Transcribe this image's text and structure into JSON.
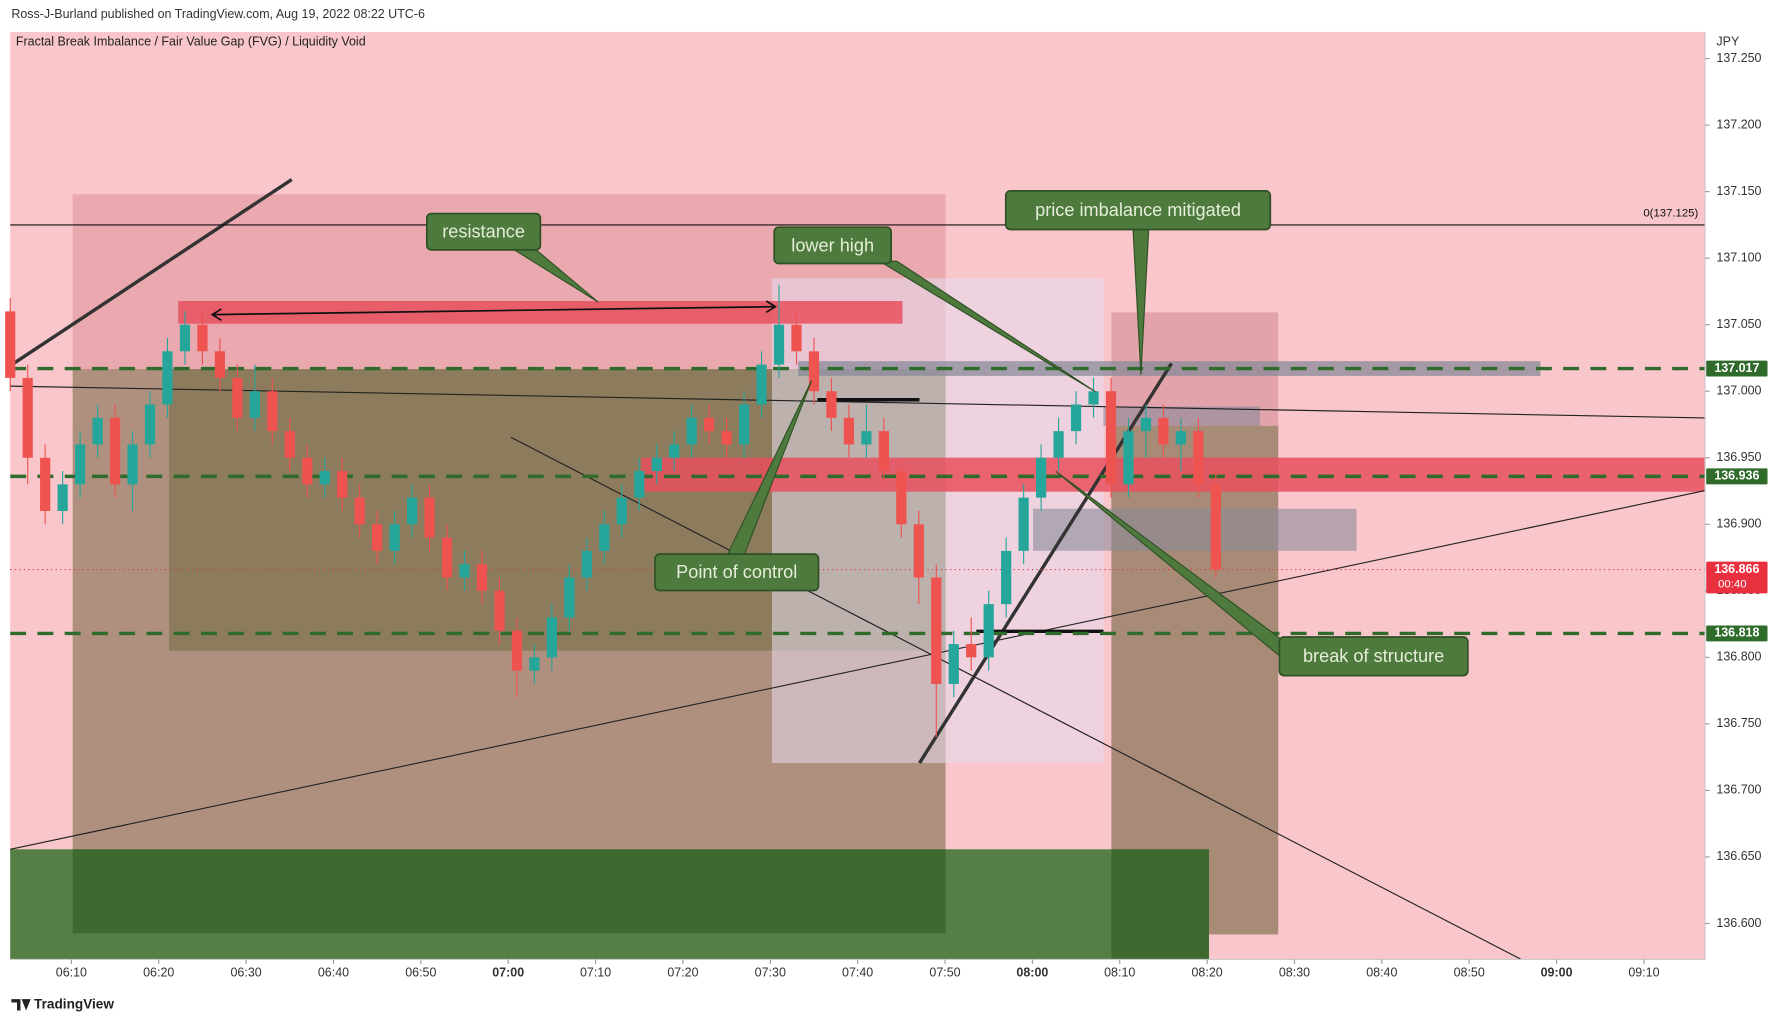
{
  "chart_data": {
    "type": "candlestick",
    "source": "Ross-J-Burland published on TradingView.com, Aug 19, 2022 08:22 UTC-6",
    "title": "Fractal Break Imbalance / Fair Value Gap (FVG) / Liquidity Void",
    "currency": "JPY",
    "brand": "TradingView",
    "up_color": "#26a69a",
    "down_color": "#ef5350",
    "x": [
      "06:03",
      "06:05",
      "06:07",
      "06:09",
      "06:11",
      "06:13",
      "06:15",
      "06:17",
      "06:19",
      "06:21",
      "06:23",
      "06:25",
      "06:27",
      "06:29",
      "06:31",
      "06:33",
      "06:35",
      "06:37",
      "06:39",
      "06:41",
      "06:43",
      "06:45",
      "06:47",
      "06:49",
      "06:51",
      "06:53",
      "06:55",
      "06:57",
      "06:59",
      "07:01",
      "07:03",
      "07:05",
      "07:07",
      "07:09",
      "07:11",
      "07:13",
      "07:15",
      "07:17",
      "07:19",
      "07:21",
      "07:23",
      "07:25",
      "07:27",
      "07:29",
      "07:31",
      "07:33",
      "07:35",
      "07:37",
      "07:39",
      "07:41",
      "07:43",
      "07:45",
      "07:47",
      "07:49",
      "07:51",
      "07:53",
      "07:55",
      "07:57",
      "07:59",
      "08:01",
      "08:03",
      "08:05",
      "08:07",
      "08:09",
      "08:11",
      "08:13",
      "08:15",
      "08:17",
      "08:19",
      "08:21"
    ],
    "open": [
      137.06,
      137.01,
      136.95,
      136.91,
      136.93,
      136.96,
      136.98,
      136.93,
      136.96,
      136.99,
      137.03,
      137.05,
      137.03,
      137.01,
      136.98,
      137.0,
      136.97,
      136.95,
      136.93,
      136.94,
      136.92,
      136.9,
      136.88,
      136.9,
      136.92,
      136.89,
      136.86,
      136.87,
      136.85,
      136.82,
      136.79,
      136.8,
      136.83,
      136.86,
      136.88,
      136.9,
      136.92,
      136.94,
      136.95,
      136.96,
      136.98,
      136.97,
      136.96,
      136.99,
      137.02,
      137.05,
      137.03,
      137.0,
      136.98,
      136.96,
      136.97,
      136.94,
      136.9,
      136.86,
      136.78,
      136.81,
      136.8,
      136.84,
      136.88,
      136.92,
      136.95,
      136.97,
      136.99,
      137.0,
      136.93,
      136.97,
      136.98,
      136.96,
      136.97,
      136.93
    ],
    "high": [
      137.07,
      137.02,
      136.96,
      136.94,
      136.97,
      136.99,
      136.99,
      136.97,
      137.0,
      137.04,
      137.06,
      137.06,
      137.04,
      137.02,
      137.02,
      137.01,
      136.98,
      136.96,
      136.95,
      136.95,
      136.93,
      136.91,
      136.91,
      136.93,
      136.93,
      136.9,
      136.88,
      136.88,
      136.86,
      136.83,
      136.81,
      136.84,
      136.87,
      136.89,
      136.91,
      136.93,
      136.95,
      136.96,
      136.97,
      136.99,
      136.99,
      136.98,
      137.0,
      137.03,
      137.08,
      137.06,
      137.04,
      137.01,
      136.99,
      136.99,
      136.98,
      136.95,
      136.91,
      136.87,
      136.82,
      136.83,
      136.85,
      136.89,
      136.93,
      136.96,
      136.98,
      137.0,
      137.01,
      137.01,
      136.98,
      136.99,
      136.99,
      136.98,
      136.98,
      136.94
    ],
    "low": [
      137.0,
      136.93,
      136.9,
      136.9,
      136.92,
      136.95,
      136.92,
      136.91,
      136.95,
      136.98,
      137.02,
      137.02,
      137.0,
      136.97,
      136.97,
      136.96,
      136.94,
      136.92,
      136.92,
      136.91,
      136.89,
      136.87,
      136.87,
      136.89,
      136.88,
      136.85,
      136.85,
      136.84,
      136.81,
      136.77,
      136.78,
      136.79,
      136.82,
      136.85,
      136.87,
      136.89,
      136.91,
      136.93,
      136.94,
      136.95,
      136.96,
      136.95,
      136.95,
      136.98,
      137.01,
      137.02,
      136.99,
      136.97,
      136.95,
      136.95,
      136.93,
      136.89,
      136.84,
      136.74,
      136.77,
      136.79,
      136.79,
      136.83,
      136.87,
      136.91,
      136.94,
      136.96,
      136.98,
      136.92,
      136.92,
      136.95,
      136.95,
      136.94,
      136.92,
      136.86
    ],
    "close": [
      137.01,
      136.95,
      136.91,
      136.93,
      136.96,
      136.98,
      136.93,
      136.96,
      136.99,
      137.03,
      137.05,
      137.03,
      137.01,
      136.98,
      137.0,
      136.97,
      136.95,
      136.93,
      136.94,
      136.92,
      136.9,
      136.88,
      136.9,
      136.92,
      136.89,
      136.86,
      136.87,
      136.85,
      136.82,
      136.79,
      136.8,
      136.83,
      136.86,
      136.88,
      136.9,
      136.92,
      136.94,
      136.95,
      136.96,
      136.98,
      136.97,
      136.96,
      136.99,
      137.02,
      137.05,
      137.03,
      137.0,
      136.98,
      136.96,
      136.97,
      136.94,
      136.9,
      136.86,
      136.78,
      136.81,
      136.8,
      136.84,
      136.88,
      136.92,
      136.95,
      136.97,
      136.99,
      137.0,
      136.93,
      136.97,
      136.98,
      136.96,
      136.97,
      136.93,
      136.866
    ],
    "xlim": [
      "06:03",
      "09:17"
    ],
    "xticks": [
      "06:10",
      "06:20",
      "06:30",
      "06:40",
      "06:50",
      "07:00",
      "07:10",
      "07:20",
      "07:30",
      "07:40",
      "07:50",
      "08:00",
      "08:10",
      "08:20",
      "08:30",
      "08:40",
      "08:50",
      "09:00",
      "09:10"
    ],
    "ylim": [
      136.573,
      137.27
    ],
    "yticks": [
      {
        "value": 136.6,
        "label": "136.600"
      },
      {
        "value": 136.65,
        "label": "136.650"
      },
      {
        "value": 136.7,
        "label": "136.700"
      },
      {
        "value": 136.75,
        "label": "136.750"
      },
      {
        "value": 136.8,
        "label": "136.800"
      },
      {
        "value": 136.85,
        "label": "136.850"
      },
      {
        "value": 136.9,
        "label": "136.900"
      },
      {
        "value": 136.95,
        "label": "136.950"
      },
      {
        "value": 137.0,
        "label": "137.000"
      },
      {
        "value": 137.05,
        "label": "137.050"
      },
      {
        "value": 137.1,
        "label": "137.100"
      },
      {
        "value": 137.15,
        "label": "137.150"
      },
      {
        "value": 137.2,
        "label": "137.200"
      },
      {
        "value": 137.25,
        "label": "137.250"
      }
    ],
    "price_lines": [
      {
        "value": 137.017,
        "color": "#2f6b2a",
        "dashed": true
      },
      {
        "value": 136.936,
        "color": "#2f6b2a",
        "dashed": true
      },
      {
        "value": 136.866,
        "color": "#e8303f",
        "dashed": false,
        "countdown": "00:40"
      },
      {
        "value": 136.818,
        "color": "#2f6b2a",
        "dashed": true
      }
    ],
    "fib_level": {
      "value": 137.125,
      "label": "0(137.125)"
    },
    "annotations": [
      "resistance",
      "lower high",
      "price imbalance mitigated",
      "Point of control",
      "break of structure"
    ]
  }
}
